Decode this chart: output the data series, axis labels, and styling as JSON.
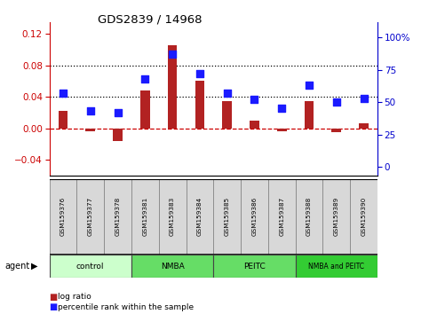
{
  "title": "GDS2839 / 14968",
  "categories": [
    "GSM159376",
    "GSM159377",
    "GSM159378",
    "GSM159381",
    "GSM159383",
    "GSM159384",
    "GSM159385",
    "GSM159386",
    "GSM159387",
    "GSM159388",
    "GSM159389",
    "GSM159390"
  ],
  "log_ratio": [
    0.022,
    -0.004,
    -0.016,
    0.048,
    0.105,
    0.06,
    0.035,
    0.01,
    -0.003,
    0.035,
    -0.005,
    0.007
  ],
  "percentile_rank": [
    57,
    43,
    42,
    68,
    87,
    72,
    57,
    52,
    45,
    63,
    50,
    53
  ],
  "bar_color": "#b22222",
  "dot_color": "#1a1aff",
  "zero_line_color": "#cc0000",
  "ylim_left": [
    -0.06,
    0.135
  ],
  "ylim_right": [
    -7,
    112
  ],
  "yticks_left": [
    -0.04,
    0.0,
    0.04,
    0.08,
    0.12
  ],
  "yticks_right": [
    0,
    25,
    50,
    75,
    100
  ],
  "ytick_labels_right": [
    "0",
    "25",
    "50",
    "75",
    "100%"
  ],
  "ylabel_left_color": "#cc0000",
  "ylabel_right_color": "#0000cc",
  "hline_values": [
    0.04,
    0.08
  ],
  "group_ranges": [
    [
      0,
      3
    ],
    [
      3,
      6
    ],
    [
      6,
      9
    ],
    [
      9,
      12
    ]
  ],
  "group_labels": [
    "control",
    "NMBA",
    "PEITC",
    "NMBA and PEITC"
  ],
  "group_colors": [
    "#ccffcc",
    "#66dd66",
    "#66dd66",
    "#33cc33"
  ],
  "legend_items": [
    {
      "label": "log ratio",
      "color": "#b22222"
    },
    {
      "label": "percentile rank within the sample",
      "color": "#1a1aff"
    }
  ],
  "agent_label": "agent",
  "bar_width": 0.35,
  "dot_size": 40
}
